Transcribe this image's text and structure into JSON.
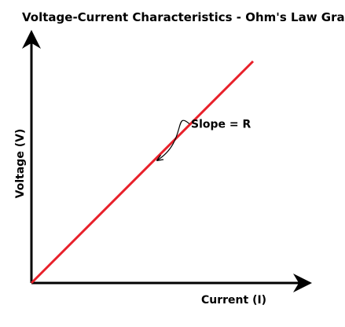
{
  "chart_data": {
    "type": "line",
    "title": "Voltage-Current Characteristics - Ohm's Law Graph",
    "xlabel": "Current (I)",
    "ylabel": "Voltage (V)",
    "xlim": [
      0,
      10
    ],
    "ylim": [
      0,
      10
    ],
    "grid": false,
    "legend": "none",
    "series": [
      {
        "x": [
          0,
          10
        ],
        "y": [
          0,
          10
        ],
        "color": "#e8202a"
      }
    ],
    "annotations": [
      {
        "text": "Slope = R",
        "x": 7.2,
        "y": 7.0
      }
    ]
  }
}
